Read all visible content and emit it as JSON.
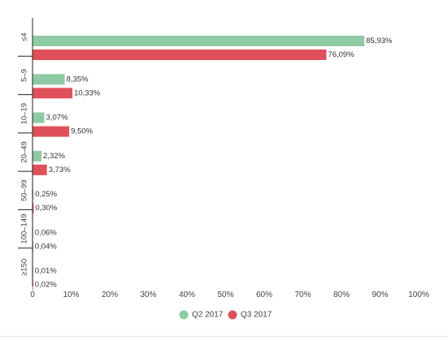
{
  "chart_data": {
    "type": "bar",
    "orientation": "horizontal",
    "categories": [
      "≤4",
      "5–9",
      "10–19",
      "20–49",
      "50–99",
      "100–149",
      "≥150"
    ],
    "series": [
      {
        "name": "Q2 2017",
        "color": "#8ecba3",
        "values": [
          85.93,
          8.35,
          3.07,
          2.32,
          0.25,
          0.06,
          0.01
        ],
        "labels": [
          "85,93%",
          "8,35%",
          "3,07%",
          "2,32%",
          "0,25%",
          "0,06%",
          "0,01%"
        ]
      },
      {
        "name": "Q3 2017",
        "color": "#e0505a",
        "values": [
          76.09,
          10.33,
          9.5,
          3.73,
          0.3,
          0.04,
          0.02
        ],
        "labels": [
          "76,09%",
          "10,33%",
          "9,50%",
          "3,73%",
          "0,30%",
          "0,04%",
          "0,02%"
        ]
      }
    ],
    "xlim": [
      0,
      100
    ],
    "xticks": [
      0,
      10,
      20,
      30,
      40,
      50,
      60,
      70,
      80,
      90,
      100
    ],
    "xtick_labels": [
      "0",
      "10%",
      "20%",
      "30%",
      "40%",
      "50%",
      "60%",
      "70%",
      "80%",
      "90%",
      "100%"
    ],
    "grid": false,
    "legend_position": "bottom-center"
  }
}
